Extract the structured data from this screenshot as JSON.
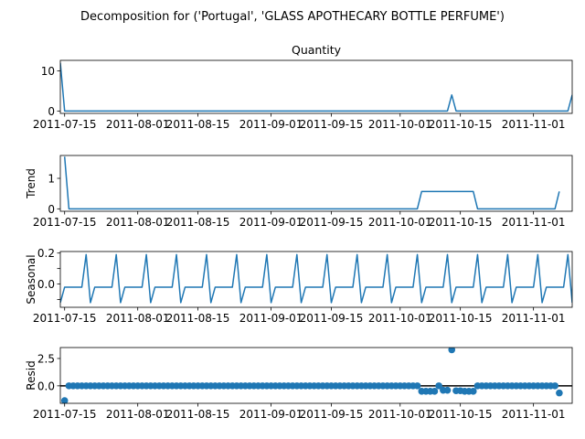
{
  "chart_data": {
    "type": "line",
    "suptitle": "Decomposition for ('Portugal', 'GLASS APOTHECARY BOTTLE PERFUME')",
    "x_start": "2011-07-14",
    "x_end": "2011-11-10",
    "x_ticks": [
      "2011-07-15",
      "2011-08-01",
      "2011-08-15",
      "2011-09-01",
      "2011-09-15",
      "2011-10-01",
      "2011-10-15",
      "2011-11-01"
    ],
    "line_color": "#1f77b4",
    "panels": [
      {
        "key": "observed",
        "title": "Quantity",
        "ylabel": "",
        "kind": "line",
        "ylim": [
          -0.6,
          12.6
        ],
        "yticks": [
          0,
          10
        ],
        "ytick_labels": [
          "0",
          "10"
        ],
        "points": [
          [
            "2011-07-14",
            12
          ],
          [
            "2011-07-15",
            0
          ],
          [
            "2011-10-12",
            0
          ],
          [
            "2011-10-13",
            4
          ],
          [
            "2011-10-14",
            0
          ],
          [
            "2011-11-09",
            0
          ],
          [
            "2011-11-10",
            4
          ]
        ]
      },
      {
        "key": "trend",
        "title": "",
        "ylabel": "Trend",
        "kind": "line",
        "ylim": [
          -0.08,
          1.75
        ],
        "yticks": [
          0,
          1
        ],
        "ytick_labels": [
          "0",
          "1"
        ],
        "points": [
          [
            "2011-07-15",
            1.71
          ],
          [
            "2011-07-16",
            0
          ],
          [
            "2011-10-05",
            0
          ],
          [
            "2011-10-06",
            0.57
          ],
          [
            "2011-10-18",
            0.57
          ],
          [
            "2011-10-19",
            0
          ],
          [
            "2011-11-06",
            0
          ],
          [
            "2011-11-07",
            0.57
          ]
        ]
      },
      {
        "key": "seasonal",
        "title": "",
        "ylabel": "Seasonal",
        "kind": "line",
        "ylim": [
          -0.15,
          0.21
        ],
        "yticks": [
          -0.1,
          0.0,
          0.1,
          0.2
        ],
        "ytick_labels": [
          "",
          "0.0",
          "",
          "0.2"
        ],
        "pattern_start": "2011-07-14",
        "pattern": [
          -0.12,
          -0.02,
          -0.02,
          -0.02,
          -0.02,
          -0.02,
          0.19
        ],
        "pattern_end": "2011-11-10"
      },
      {
        "key": "resid",
        "title": "",
        "ylabel": "Resid",
        "kind": "scatter",
        "ylim": [
          -1.6,
          3.5
        ],
        "yticks": [
          0,
          2.5
        ],
        "ytick_labels": [
          "0.0",
          "2.5"
        ],
        "zero_line": true,
        "start": "2011-07-15",
        "end": "2011-11-07",
        "default": 0,
        "overrides": [
          [
            "2011-07-15",
            -1.35
          ],
          [
            "2011-10-06",
            -0.5
          ],
          [
            "2011-10-07",
            -0.5
          ],
          [
            "2011-10-08",
            -0.5
          ],
          [
            "2011-10-09",
            -0.5
          ],
          [
            "2011-10-11",
            -0.4
          ],
          [
            "2011-10-12",
            -0.4
          ],
          [
            "2011-10-13",
            3.3
          ],
          [
            "2011-10-14",
            -0.45
          ],
          [
            "2011-10-15",
            -0.45
          ],
          [
            "2011-10-16",
            -0.5
          ],
          [
            "2011-10-17",
            -0.5
          ],
          [
            "2011-10-18",
            -0.5
          ],
          [
            "2011-11-07",
            -0.65
          ]
        ]
      }
    ]
  }
}
